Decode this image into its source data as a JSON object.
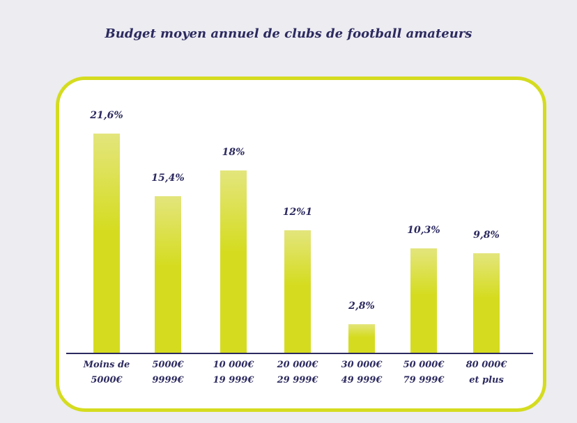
{
  "chart_data": {
    "type": "bar",
    "title": "Budget moyen annuel de clubs de football amateurs",
    "categories": [
      "Moins de\n5000€",
      "5000€\n9999€",
      "10 000€\n19 999€",
      "20 000€\n29 999€",
      "30 000€\n49 999€",
      "50 000€\n79 999€",
      "80 000€\net plus"
    ],
    "values": [
      21.6,
      15.4,
      18,
      12.1,
      2.8,
      10.3,
      9.8
    ],
    "value_labels": [
      "21,6%",
      "15,4%",
      "18%",
      "12%1",
      "2,8%",
      "10,3%",
      "9,8%"
    ],
    "color": "#d5dc1f"
  }
}
